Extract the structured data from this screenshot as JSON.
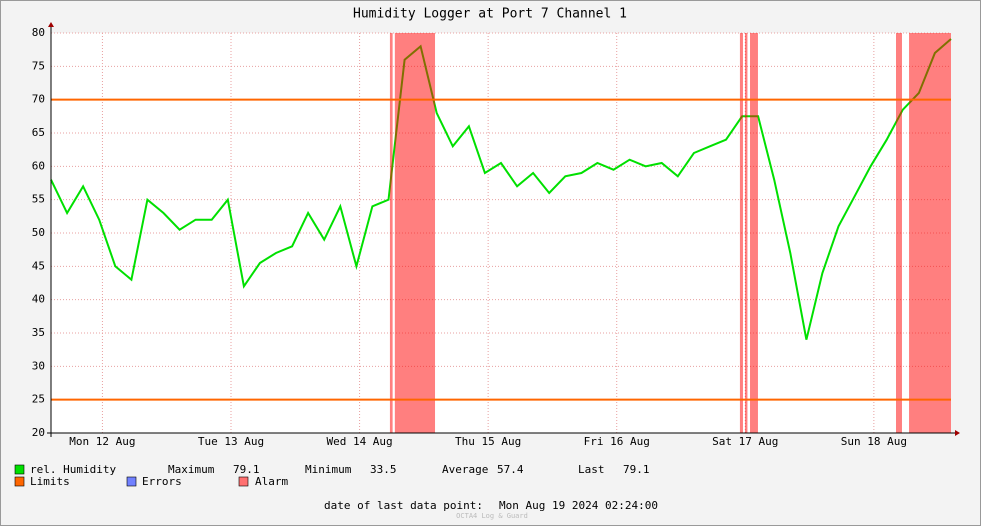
{
  "chart_data": {
    "type": "line",
    "title": "Humidity Logger at Port 7 Channel 1",
    "x": [
      "2024-08-12T02:24",
      "2024-08-12T05:24",
      "2024-08-12T08:24",
      "2024-08-12T11:24",
      "2024-08-12T14:24",
      "2024-08-12T17:24",
      "2024-08-12T20:24",
      "2024-08-12T23:24",
      "2024-08-13T02:24",
      "2024-08-13T05:24",
      "2024-08-13T08:24",
      "2024-08-13T11:24",
      "2024-08-13T14:24",
      "2024-08-13T17:24",
      "2024-08-13T20:24",
      "2024-08-13T23:24",
      "2024-08-14T02:24",
      "2024-08-14T05:24",
      "2024-08-14T08:24",
      "2024-08-14T11:24",
      "2024-08-14T14:24",
      "2024-08-14T17:24",
      "2024-08-14T20:24",
      "2024-08-14T23:24",
      "2024-08-15T02:24",
      "2024-08-15T05:24",
      "2024-08-15T08:24",
      "2024-08-15T11:24",
      "2024-08-15T14:24",
      "2024-08-15T17:24",
      "2024-08-15T20:24",
      "2024-08-15T23:24",
      "2024-08-16T02:24",
      "2024-08-16T05:24",
      "2024-08-16T08:24",
      "2024-08-16T11:24",
      "2024-08-16T14:24",
      "2024-08-16T17:24",
      "2024-08-16T20:24",
      "2024-08-16T23:24",
      "2024-08-17T02:24",
      "2024-08-17T05:24",
      "2024-08-17T08:24",
      "2024-08-17T11:24",
      "2024-08-17T14:24",
      "2024-08-17T17:24",
      "2024-08-17T20:24",
      "2024-08-17T23:24",
      "2024-08-18T02:24",
      "2024-08-18T05:24",
      "2024-08-18T08:24",
      "2024-08-18T11:24",
      "2024-08-18T14:24",
      "2024-08-18T17:24",
      "2024-08-18T20:24",
      "2024-08-18T23:24",
      "2024-08-19T02:24"
    ],
    "series": [
      {
        "name": "rel. Humidity",
        "color": "#00e000",
        "values": [
          58,
          53,
          57,
          52,
          45,
          43,
          55,
          53,
          50.5,
          52,
          52,
          55,
          42,
          45.5,
          47,
          48,
          53,
          49,
          54,
          45,
          54,
          55,
          76,
          78,
          68,
          63,
          66,
          59,
          60.5,
          57,
          59,
          56,
          58.5,
          59,
          60.5,
          59.5,
          61,
          60,
          60.5,
          58.5,
          62,
          63,
          64,
          67.5,
          67.5,
          58,
          47,
          34,
          44,
          51,
          55.5,
          60,
          64,
          68.5,
          71,
          77,
          79.1
        ]
      }
    ],
    "xlim": [
      "2024-08-12T02:24",
      "2024-08-19T02:24"
    ],
    "xticks": [
      {
        "value": "2024-08-12T12:00",
        "label": "Mon 12 Aug"
      },
      {
        "value": "2024-08-13T12:00",
        "label": "Tue 13 Aug"
      },
      {
        "value": "2024-08-14T12:00",
        "label": "Wed 14 Aug"
      },
      {
        "value": "2024-08-15T12:00",
        "label": "Thu 15 Aug"
      },
      {
        "value": "2024-08-16T12:00",
        "label": "Fri 16 Aug"
      },
      {
        "value": "2024-08-17T12:00",
        "label": "Sat 17 Aug"
      },
      {
        "value": "2024-08-18T12:00",
        "label": "Sun 18 Aug"
      }
    ],
    "ylim": [
      20,
      80
    ],
    "yticks": [
      20,
      25,
      30,
      35,
      40,
      45,
      50,
      55,
      60,
      65,
      70,
      75,
      80
    ],
    "grid": true,
    "limits": {
      "name": "Limits",
      "color": "#ff6600",
      "values": [
        70,
        25
      ]
    },
    "errors": {
      "name": "Errors",
      "color": "#7080ff"
    },
    "alarm": {
      "name": "Alarm",
      "color": "#ff7070",
      "ranges": [
        [
          "2024-08-14T17:40",
          "2024-08-14T18:10"
        ],
        [
          "2024-08-14T18:35",
          "2024-08-15T02:05"
        ],
        [
          "2024-08-17T11:00",
          "2024-08-17T11:34"
        ],
        [
          "2024-08-17T11:57",
          "2024-08-17T12:24"
        ],
        [
          "2024-08-17T12:53",
          "2024-08-17T14:22"
        ],
        [
          "2024-08-18T16:08",
          "2024-08-18T17:15"
        ],
        [
          "2024-08-18T18:34",
          "2024-08-19T02:24"
        ]
      ]
    },
    "stats": [
      {
        "label": "Maximum",
        "value": 79.1
      },
      {
        "label": "Minimum",
        "value": 33.5
      },
      {
        "label": "Average",
        "value": 57.4
      },
      {
        "label": "Last",
        "value": 79.1
      }
    ],
    "footer": {
      "label": "date of last data point:",
      "value": "Mon Aug 19 2024 02:24:00"
    },
    "watermark": "OCTA4 Log & Guard"
  }
}
